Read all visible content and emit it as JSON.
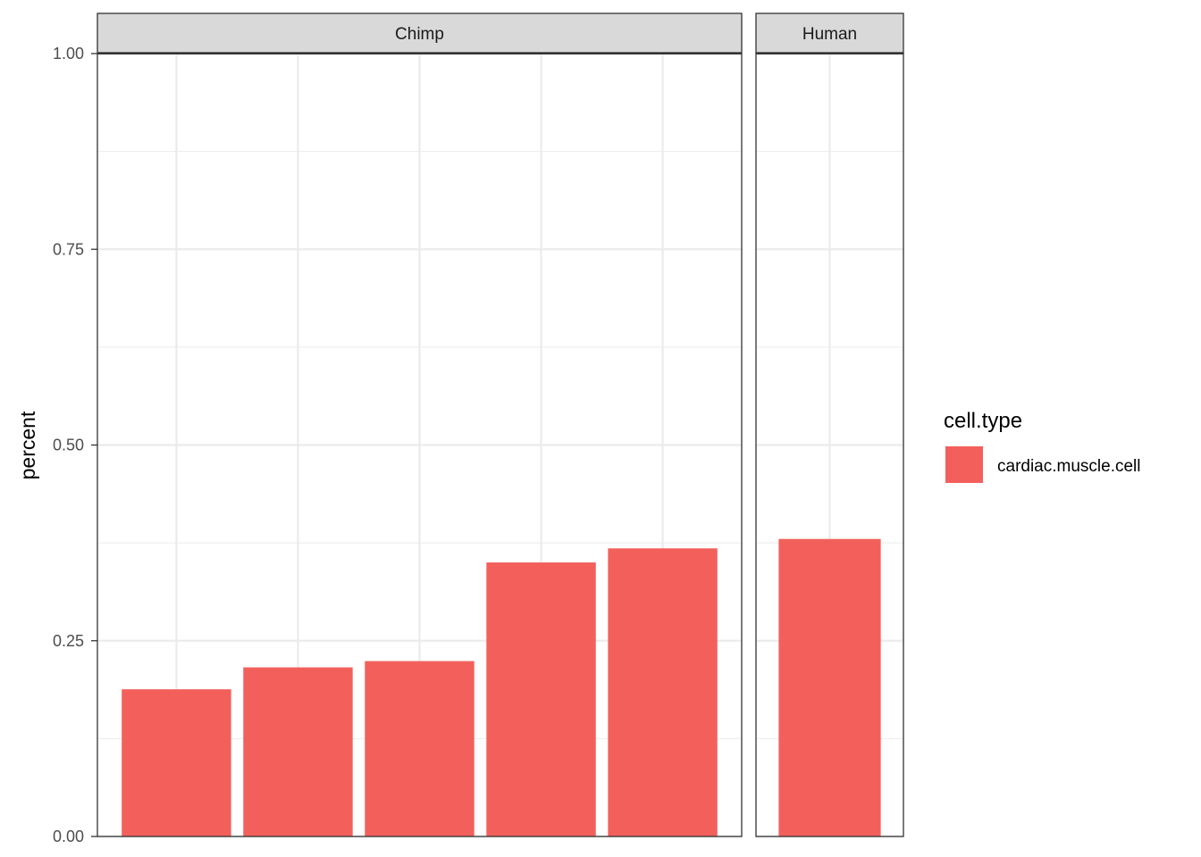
{
  "chart_data": {
    "type": "bar",
    "ylabel": "percent",
    "xlabel": "",
    "ylim": [
      0,
      1
    ],
    "y_ticks": [
      "0.00",
      "0.25",
      "0.50",
      "0.75",
      "1.00"
    ],
    "y_tick_values": [
      0,
      0.25,
      0.5,
      0.75,
      1.0
    ],
    "grid": true,
    "facets": [
      {
        "name": "Chimp",
        "values": [
          0.188,
          0.216,
          0.224,
          0.35,
          0.368
        ]
      },
      {
        "name": "Human",
        "values": [
          0.38
        ]
      }
    ],
    "legend": {
      "title": "cell.type",
      "position": "right",
      "entries": [
        {
          "label": "cardiac.muscle.cell",
          "color": "#F3605C"
        }
      ]
    },
    "bar_color": "#F3605C"
  }
}
